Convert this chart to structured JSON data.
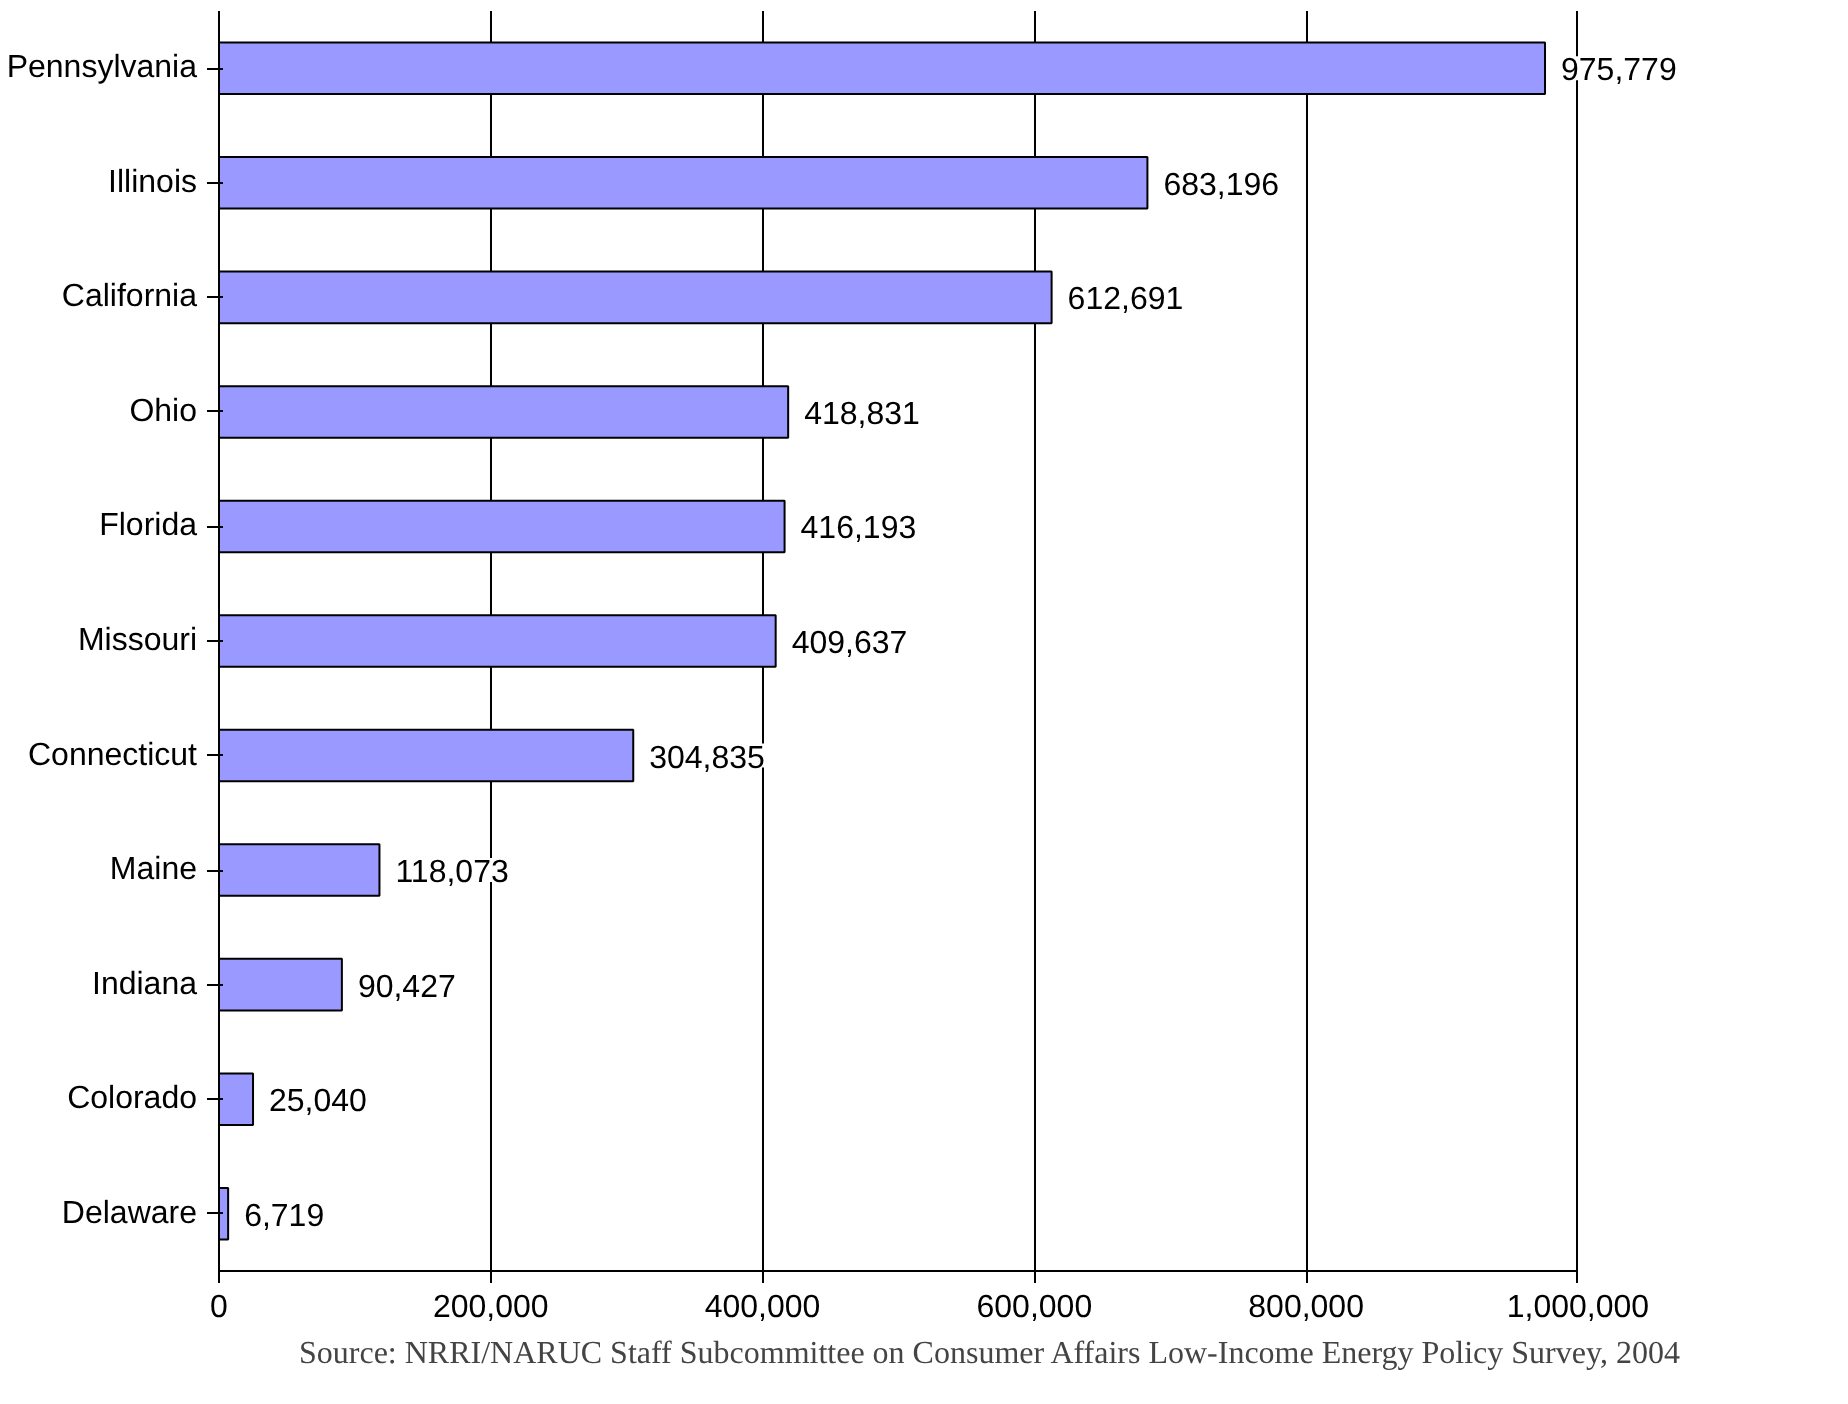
{
  "chart_data": {
    "type": "bar",
    "orientation": "horizontal",
    "categories": [
      "Pennsylvania",
      "Illinois",
      "California",
      "Ohio",
      "Florida",
      "Missouri",
      "Connecticut",
      "Maine",
      "Indiana",
      "Colorado",
      "Delaware"
    ],
    "values": [
      975779,
      683196,
      612691,
      418831,
      416193,
      409637,
      304835,
      118073,
      90427,
      25040,
      6719
    ],
    "value_labels": [
      "975,779",
      "683,196",
      "612,691",
      "418,831",
      "416,193",
      "409,637",
      "304,835",
      "118,073",
      "90,427",
      "25,040",
      "6,719"
    ],
    "color": "#9999ff",
    "xlim": [
      0,
      1000000
    ],
    "xticks": [
      0,
      {
        "value": 200000,
        "label": "200,000"
      },
      {
        "value": 400000,
        "label": "400,000"
      },
      {
        "value": 600000,
        "label": "600,000"
      },
      {
        "value": 800000,
        "label": "800,000"
      },
      {
        "value": 1000000,
        "label": "1,000,000"
      }
    ],
    "grid": "x",
    "annotations": [
      "Source: NRRI/NARUC Staff Subcommittee on Consumer Affairs Low-Income Energy Policy Survey, 2004"
    ]
  }
}
